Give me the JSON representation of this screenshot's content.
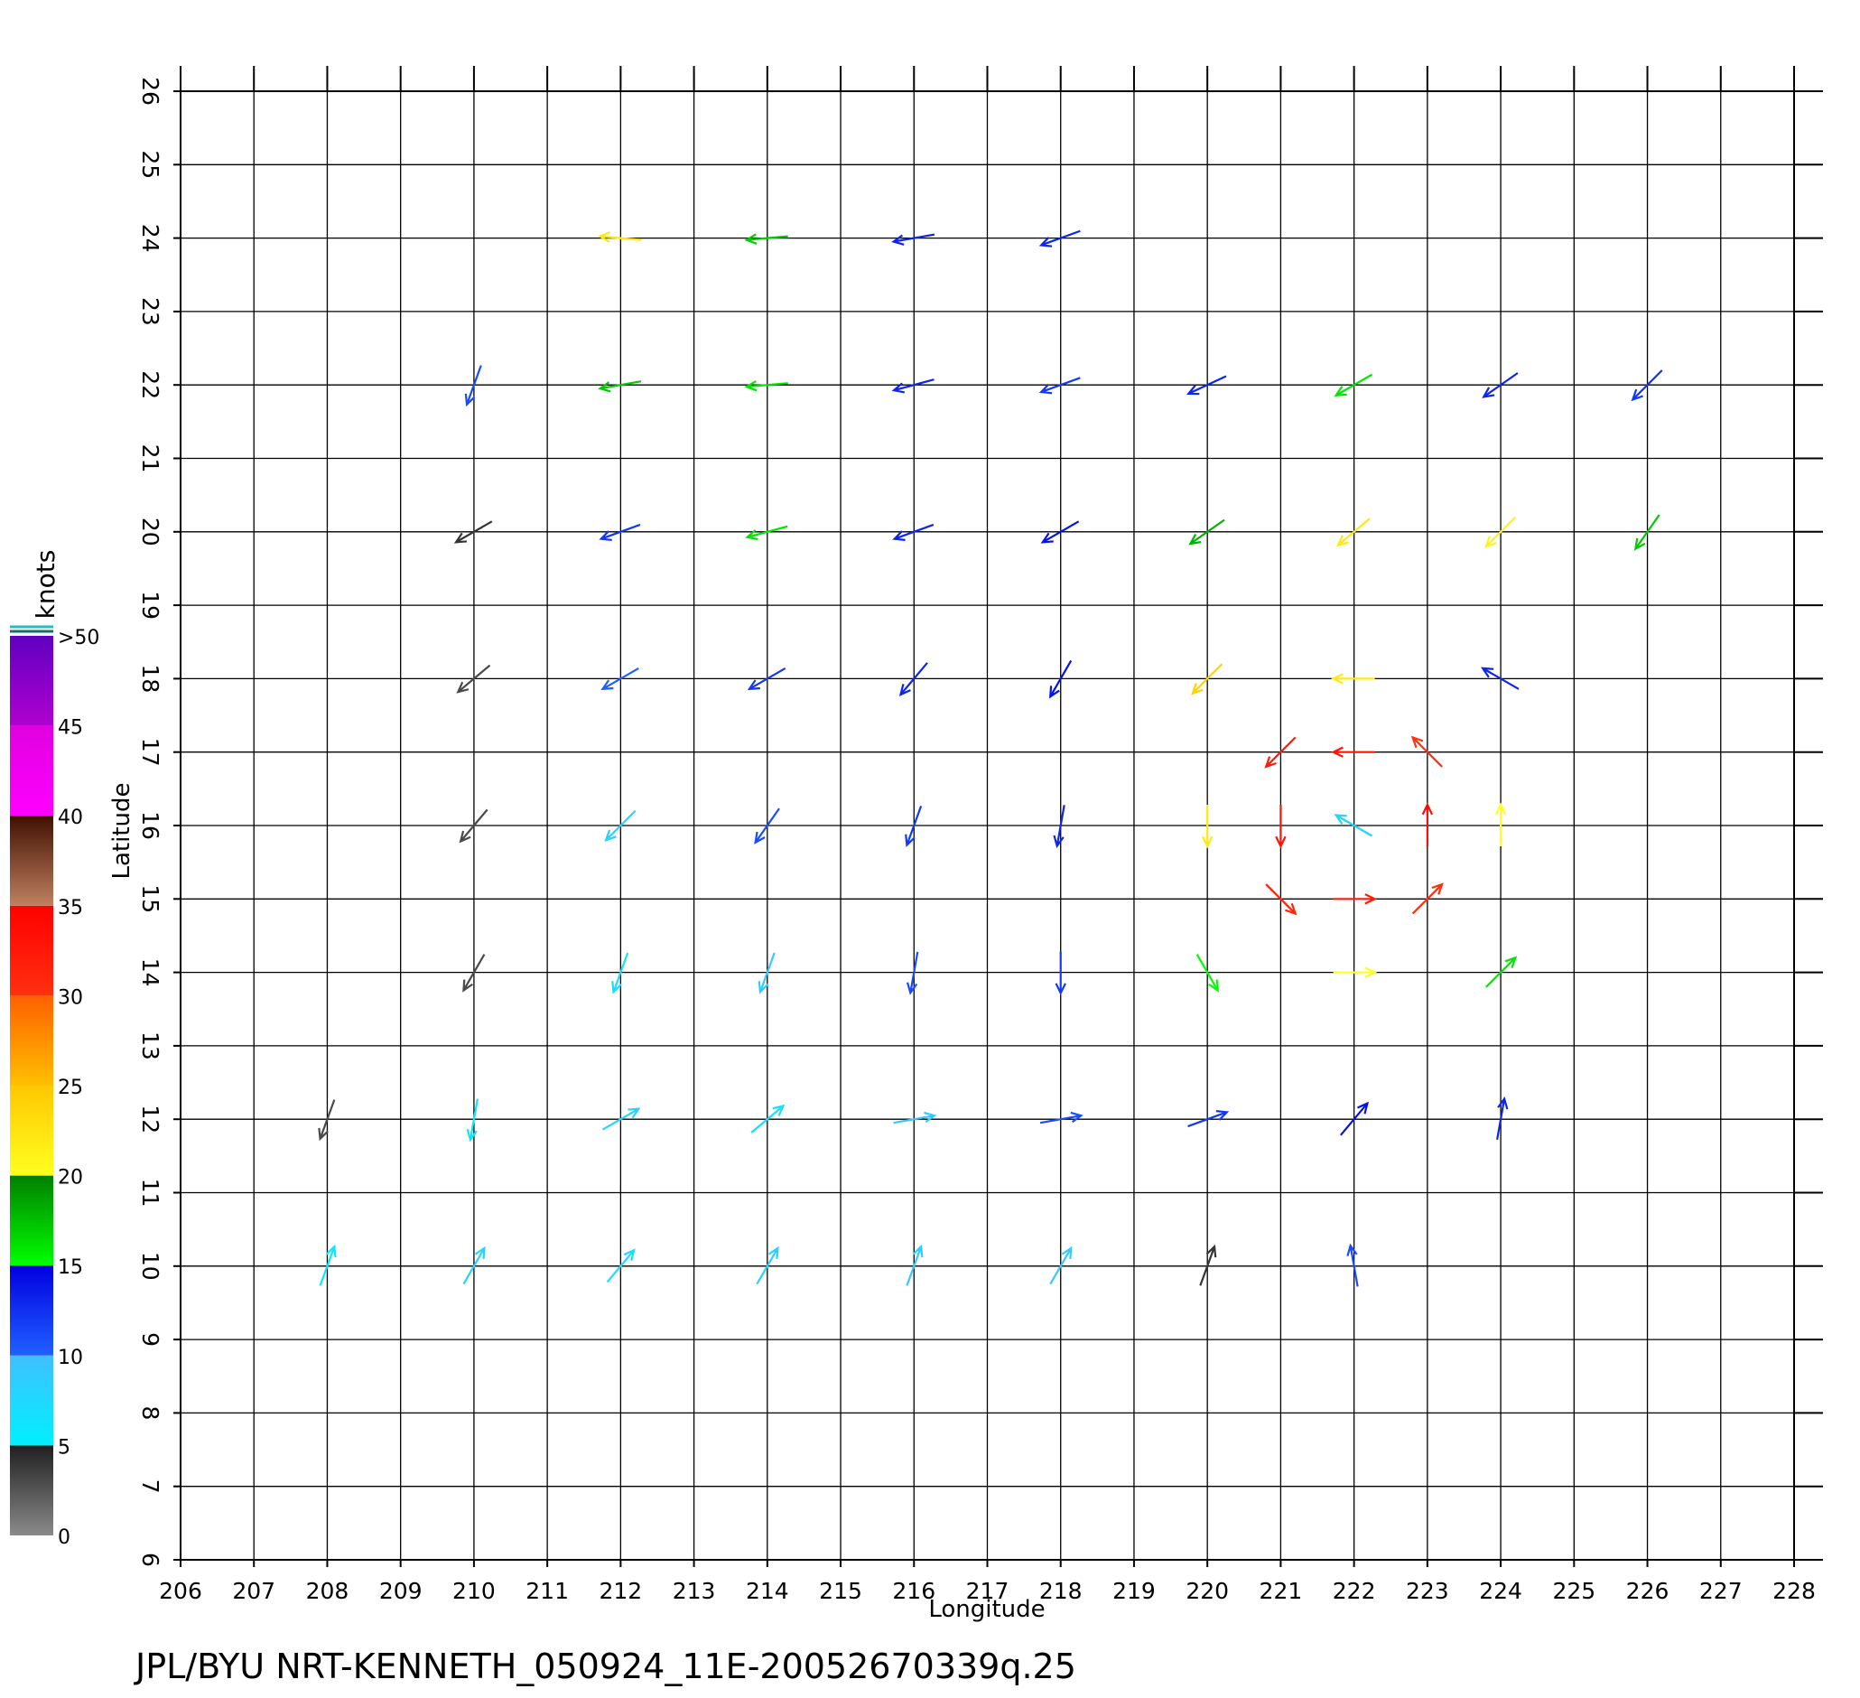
{
  "chart_data": {
    "type": "quiver",
    "title": "JPL/BYU  NRT-KENNETH_050924_11E-20052670339q.25",
    "xlabel": "Longitude",
    "ylabel": "Latitude",
    "xlim": [
      206,
      228
    ],
    "ylim": [
      6,
      26
    ],
    "xticks": [
      206,
      207,
      208,
      209,
      210,
      211,
      212,
      213,
      214,
      215,
      216,
      217,
      218,
      219,
      220,
      221,
      222,
      223,
      224,
      225,
      226,
      227,
      228
    ],
    "yticks": [
      6,
      7,
      8,
      9,
      10,
      11,
      12,
      13,
      14,
      15,
      16,
      17,
      18,
      19,
      20,
      21,
      22,
      23,
      24,
      25,
      26
    ],
    "grid": true,
    "colorbar": {
      "label": "knots",
      "ticks": [
        0,
        5,
        10,
        15,
        20,
        25,
        30,
        35,
        40,
        45,
        {
          "value": 50,
          "label": ">50"
        }
      ],
      "colors": [
        [
          "#8a8a8a",
          "#202020"
        ],
        [
          "#00f0ff",
          "#40c0ff"
        ],
        [
          "#2060ff",
          "#0000e0"
        ],
        [
          "#00ff00",
          "#008000"
        ],
        [
          "#ffff20",
          "#ffc800"
        ],
        [
          "#ffc000",
          "#ff6000"
        ],
        [
          "#ff3010",
          "#ff0000"
        ],
        [
          "#c08060",
          "#401000"
        ],
        [
          "#ff00ff",
          "#e000e0"
        ],
        [
          "#b000d0",
          "#6000c0"
        ]
      ]
    },
    "vectors": {
      "x": [
        208,
        210,
        212,
        214,
        216,
        218,
        220,
        222,
        208,
        210,
        212,
        214,
        216,
        218,
        220,
        222,
        224,
        210,
        212,
        214,
        216,
        218,
        220,
        222,
        224,
        210,
        212,
        214,
        216,
        218,
        220,
        222,
        224,
        210,
        212,
        214,
        216,
        218,
        220,
        222,
        224,
        210,
        212,
        214,
        216,
        218,
        220,
        222,
        224,
        226,
        210,
        212,
        214,
        216,
        218,
        220,
        222,
        224,
        226,
        212,
        214,
        216,
        218,
        222,
        223,
        222,
        221,
        221,
        223,
        221,
        223
      ],
      "y": [
        10,
        10,
        10,
        10,
        10,
        10,
        10,
        10,
        12,
        12,
        12,
        12,
        12,
        12,
        12,
        12,
        12,
        14,
        14,
        14,
        14,
        14,
        14,
        14,
        14,
        16,
        16,
        16,
        16,
        16,
        16,
        16,
        16,
        18,
        18,
        18,
        18,
        18,
        18,
        18,
        18,
        20,
        20,
        20,
        20,
        20,
        20,
        20,
        20,
        20,
        22,
        22,
        22,
        22,
        22,
        22,
        22,
        22,
        22,
        24,
        24,
        24,
        24,
        17,
        16,
        15,
        16,
        17,
        17,
        15,
        15
      ],
      "speed": [
        6,
        8,
        7,
        8,
        9,
        9,
        4,
        11,
        3,
        6,
        8,
        7,
        9,
        11,
        12,
        14,
        13,
        3,
        7,
        9,
        11,
        12,
        15,
        20,
        16,
        3,
        8,
        11,
        12,
        13,
        22,
        8,
        20,
        3,
        10,
        12,
        13,
        14,
        24,
        22,
        13,
        4,
        12,
        16,
        13,
        14,
        18,
        22,
        21,
        17,
        11,
        17,
        16,
        13,
        12,
        13,
        16,
        13,
        12,
        22,
        17,
        13,
        13,
        33,
        34,
        32,
        33,
        32,
        30,
        31,
        30
      ],
      "direction": [
        20,
        30,
        40,
        30,
        20,
        30,
        20,
        350,
        200,
        190,
        60,
        50,
        80,
        80,
        70,
        40,
        10,
        210,
        200,
        200,
        190,
        180,
        150,
        90,
        45,
        220,
        225,
        215,
        200,
        190,
        180,
        300,
        0,
        230,
        240,
        240,
        220,
        210,
        225,
        270,
        300,
        240,
        250,
        255,
        250,
        240,
        235,
        230,
        225,
        215,
        200,
        260,
        265,
        255,
        250,
        245,
        240,
        235,
        225,
        275,
        265,
        260,
        250,
        270,
        0,
        90,
        180,
        225,
        315,
        135,
        45
      ]
    }
  }
}
